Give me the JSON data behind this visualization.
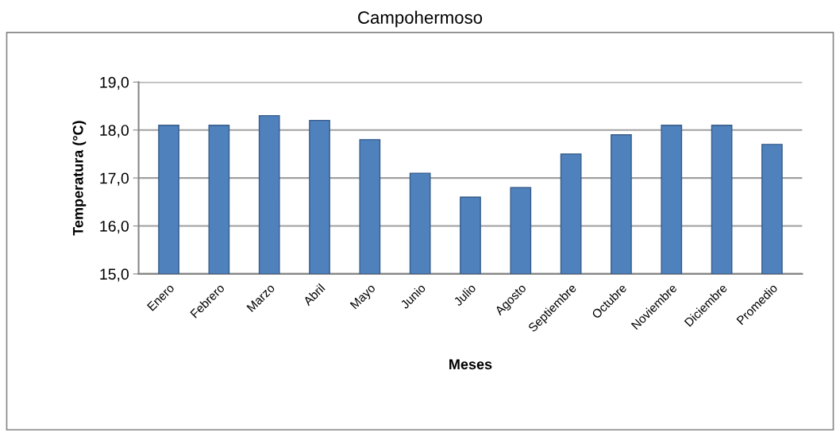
{
  "chart_data": {
    "type": "bar",
    "title": "Campohermoso",
    "xlabel": "Meses",
    "ylabel": "Temperatura (°C)",
    "categories": [
      "Enero",
      "Febrero",
      "Marzo",
      "Abril",
      "Mayo",
      "Junio",
      "Julio",
      "Agosto",
      "Septiembre",
      "Octubre",
      "Noviembre",
      "Diciembre",
      "Promedio"
    ],
    "values": [
      18.1,
      18.1,
      18.3,
      18.2,
      17.8,
      17.1,
      16.6,
      16.8,
      17.5,
      17.9,
      18.1,
      18.1,
      17.7
    ],
    "color": "#4f81bd",
    "ylim": [
      15,
      19
    ],
    "yticks": [
      {
        "value": 15,
        "label": "15,0"
      },
      {
        "value": 16,
        "label": "16,0"
      },
      {
        "value": 17,
        "label": "17,0"
      },
      {
        "value": 18,
        "label": "18,0"
      },
      {
        "value": 19,
        "label": "19,0"
      }
    ],
    "grid": "y",
    "legend": false
  }
}
